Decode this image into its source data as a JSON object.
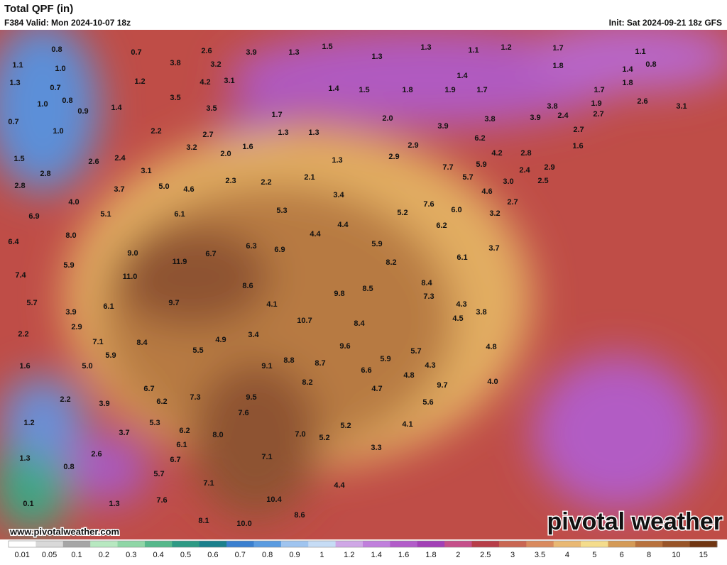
{
  "header": {
    "title": "Total QPF (in)",
    "valid": "F384 Valid: Mon 2024-10-07 18z",
    "init": "Init: Sat 2024-09-21 18z GFS"
  },
  "map": {
    "point_values": [
      "0.8",
      "0.7",
      "2.6",
      "3.9",
      "1.3",
      "1.5",
      "1.3",
      "1.3",
      "1.1",
      "1.2",
      "1.7",
      "1.1",
      "1.1",
      "1.0",
      "3.8",
      "3.2",
      "1.8",
      "1.4",
      "0.8",
      "1.3",
      "1.2",
      "4.2",
      "3.1",
      "1.4",
      "1.8",
      "0.7",
      "1.4",
      "1.5",
      "1.8",
      "1.9",
      "1.7",
      "1.7",
      "1.0",
      "0.8",
      "3.5",
      "1.9",
      "2.6",
      "0.9",
      "1.4",
      "3.5",
      "1.7",
      "2.0",
      "3.8",
      "3.9",
      "3.8",
      "2.4",
      "2.7",
      "3.1",
      "0.7",
      "1.0",
      "2.2",
      "2.7",
      "1.3",
      "1.3",
      "3.9",
      "6.2",
      "2.7",
      "3.2",
      "2.0",
      "1.6",
      "2.9",
      "4.2",
      "2.8",
      "1.6",
      "1.5",
      "2.6",
      "2.4",
      "3.1",
      "1.3",
      "2.9",
      "7.7",
      "5.9",
      "2.9",
      "2.8",
      "2.3",
      "2.2",
      "2.1",
      "5.7",
      "2.4",
      "2.5",
      "2.8",
      "3.7",
      "5.0",
      "4.6",
      "3.0",
      "4.0",
      "3.4",
      "4.6",
      "2.7",
      "5.1",
      "6.1",
      "5.3",
      "7.6",
      "5.2",
      "6.0",
      "3.2",
      "6.9",
      "8.0",
      "4.4",
      "4.4",
      "6.2",
      "6.4",
      "6.3",
      "6.9",
      "5.9",
      "3.7",
      "9.0",
      "6.7",
      "11.9",
      "8.2",
      "6.1",
      "7.4",
      "5.9",
      "11.0",
      "8.6",
      "8.5",
      "8.4",
      "5.7",
      "9.7",
      "4.1",
      "9.8",
      "7.3",
      "4.3",
      "3.9",
      "6.1",
      "10.7",
      "4.5",
      "3.8",
      "2.2",
      "2.9",
      "8.4",
      "3.4",
      "4.9",
      "7.1",
      "8.4",
      "5.5",
      "9.6",
      "5.7",
      "4.8",
      "5.9",
      "8.8",
      "8.7",
      "5.9",
      "4.3",
      "1.6",
      "5.0",
      "9.1",
      "6.6",
      "4.8",
      "8.2",
      "9.7",
      "4.0",
      "6.7",
      "4.7",
      "2.2",
      "7.3",
      "9.5",
      "6.2",
      "3.9",
      "5.6",
      "7.6",
      "1.2",
      "5.3",
      "5.2",
      "4.1",
      "3.7",
      "6.2",
      "8.0",
      "7.0",
      "5.2",
      "6.1",
      "3.3",
      "1.3",
      "2.6",
      "6.7",
      "7.1",
      "0.8",
      "5.7",
      "7.1",
      "4.4",
      "7.6",
      "10.4",
      "0.1",
      "1.3",
      "8.6",
      "8.1",
      "10.0"
    ]
  },
  "colorbar": {
    "ticks": [
      0.01,
      0.05,
      0.1,
      0.2,
      0.3,
      0.4,
      0.5,
      0.6,
      0.7,
      0.8,
      0.9,
      1,
      1.2,
      1.4,
      1.6,
      1.8,
      2,
      2.5,
      3,
      3.5,
      4,
      5,
      6,
      8,
      10,
      15
    ],
    "colors": [
      "#ffffff",
      "#d9d9d9",
      "#a6a6a6",
      "#b7e8c0",
      "#8fd6a6",
      "#56b88b",
      "#2e9a84",
      "#1b7f8c",
      "#3a7fcf",
      "#5a9be0",
      "#9fc4ef",
      "#c6dcf5",
      "#cfa7e6",
      "#c07fdc",
      "#b25cc9",
      "#a240b6",
      "#c54f8a",
      "#b73d48",
      "#c96652",
      "#d98a5e",
      "#e9b873",
      "#f4dc8c",
      "#d49a56",
      "#b8713c",
      "#985428",
      "#703612"
    ]
  },
  "footer": {
    "url": "www.pivotalweather.com",
    "logo": "pivotal weather"
  }
}
